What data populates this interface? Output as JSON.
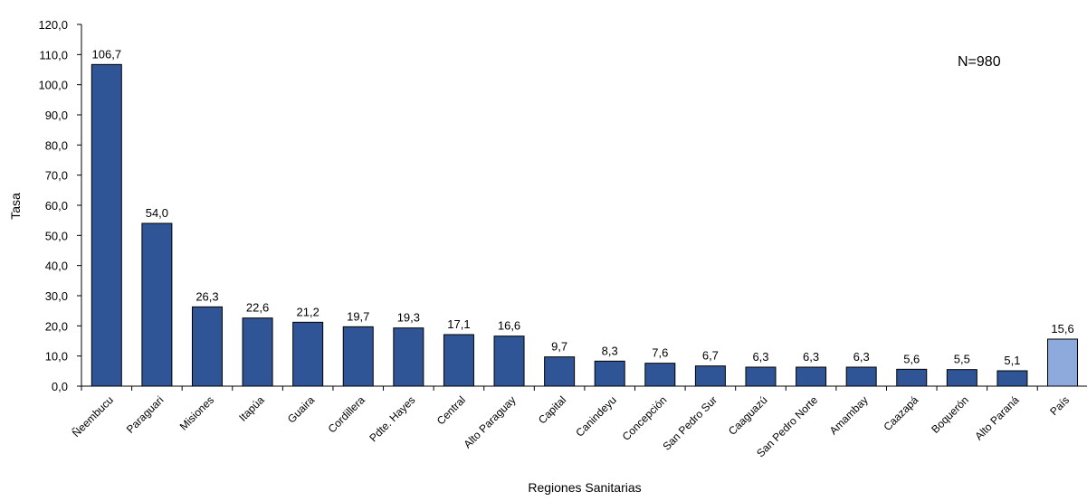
{
  "chart_data": {
    "type": "bar",
    "xlabel": "Regiones Sanitarias",
    "ylabel": "Tasa",
    "ylim": [
      0,
      120
    ],
    "ytick_step": 10,
    "ytick_labels": [
      "0,0",
      "10,0",
      "20,0",
      "30,0",
      "40,0",
      "50,0",
      "60,0",
      "70,0",
      "80,0",
      "90,0",
      "100,0",
      "110,0",
      "120,0"
    ],
    "annotation": "N=980",
    "grid": false,
    "legend": "none",
    "colors": {
      "bar": "#2F5597",
      "highlight": "#8EA9DB",
      "border": "#000000"
    },
    "categories": [
      "Ñeembucu",
      "Paraguari",
      "Misiones",
      "Itapúa",
      "Guaira",
      "Cordillera",
      "Pdte. Hayes",
      "Central",
      "Alto Paraguay",
      "Capital",
      "Canindeyu",
      "Concepción",
      "San Pedro Sur",
      "Caaguazú",
      "San Pedro Norte",
      "Amambay",
      "Caazapá",
      "Boquerón",
      "Alto Paraná",
      "País"
    ],
    "values": [
      106.7,
      54.0,
      26.3,
      22.6,
      21.2,
      19.7,
      19.3,
      17.1,
      16.6,
      9.7,
      8.3,
      7.6,
      6.7,
      6.3,
      6.3,
      6.3,
      5.6,
      5.5,
      5.1,
      15.6
    ],
    "value_labels": [
      "106,7",
      "54,0",
      "26,3",
      "22,6",
      "21,2",
      "19,7",
      "19,3",
      "17,1",
      "16,6",
      "9,7",
      "8,3",
      "7,6",
      "6,7",
      "6,3",
      "6,3",
      "6,3",
      "5,6",
      "5,5",
      "5,1",
      "15,6"
    ],
    "highlight_index": 19
  }
}
